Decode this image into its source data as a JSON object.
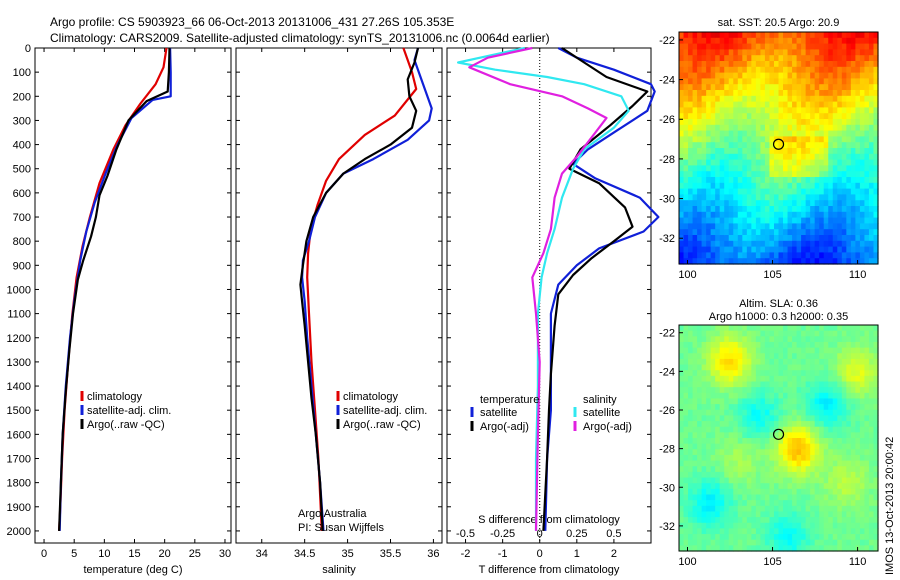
{
  "header": {
    "line1": "Argo profile: CS 5903923_66 06-Oct-2013 20131006_431 27.26S 105.353E",
    "line2": "Climatology: CARS2009. Satellite-adjusted climatology: synTS_20131006.nc (0.0064d earlier)"
  },
  "colors": {
    "climatology": "#e00000",
    "satellite": "#1020d8",
    "argo": "#000000",
    "sal_sat": "#30e8f0",
    "sal_argo": "#e020e0"
  },
  "chart_data": [
    {
      "id": "temperature",
      "type": "line",
      "xlabel": "temperature (deg C)",
      "ylabel": "",
      "xlim": [
        -1.5,
        31
      ],
      "ylim": [
        2050,
        0
      ],
      "xticks": [
        0,
        5,
        10,
        15,
        20,
        25,
        30
      ],
      "yticks": [
        0,
        100,
        200,
        300,
        400,
        500,
        600,
        700,
        800,
        900,
        1000,
        1100,
        1200,
        1300,
        1400,
        1500,
        1600,
        1700,
        1800,
        1900,
        2000
      ],
      "legend": [
        "climatology",
        "satellite-adj. clim.",
        "Argo(..raw -QC)"
      ],
      "series": [
        {
          "name": "climatology",
          "color": "#e00000",
          "points": [
            [
              20.3,
              0
            ],
            [
              19.8,
              80
            ],
            [
              18.5,
              150
            ],
            [
              16,
              230
            ],
            [
              13.5,
              320
            ],
            [
              11.5,
              420
            ],
            [
              9.2,
              560
            ],
            [
              7.6,
              700
            ],
            [
              6.4,
              820
            ],
            [
              5.4,
              950
            ],
            [
              4.7,
              1100
            ],
            [
              4.0,
              1300
            ],
            [
              3.4,
              1500
            ],
            [
              3.0,
              1700
            ],
            [
              2.7,
              1900
            ],
            [
              2.5,
              2000
            ]
          ]
        },
        {
          "name": "satellite-adj. clim.",
          "color": "#1020d8",
          "points": [
            [
              20.9,
              0
            ],
            [
              21,
              100
            ],
            [
              21,
              200
            ],
            [
              18,
              215
            ],
            [
              14.5,
              290
            ],
            [
              12.2,
              400
            ],
            [
              10.2,
              520
            ],
            [
              8.4,
              640
            ],
            [
              7,
              760
            ],
            [
              6,
              880
            ],
            [
              5,
              1050
            ],
            [
              4.3,
              1200
            ],
            [
              3.6,
              1400
            ],
            [
              3.1,
              1600
            ],
            [
              2.8,
              1800
            ],
            [
              2.6,
              2000
            ]
          ]
        },
        {
          "name": "Argo(..raw -QC)",
          "color": "#000000",
          "points": [
            [
              20.8,
              0
            ],
            [
              20.7,
              100
            ],
            [
              20.5,
              180
            ],
            [
              17,
              220
            ],
            [
              14,
              300
            ],
            [
              12,
              420
            ],
            [
              10.5,
              530
            ],
            [
              9.2,
              610
            ],
            [
              8.6,
              700
            ],
            [
              7.8,
              780
            ],
            [
              6.5,
              880
            ],
            [
              5.6,
              960
            ],
            [
              4.8,
              1100
            ],
            [
              4.2,
              1250
            ],
            [
              3.6,
              1420
            ],
            [
              3.1,
              1600
            ],
            [
              2.8,
              1800
            ],
            [
              2.5,
              2000
            ]
          ]
        }
      ]
    },
    {
      "id": "salinity",
      "type": "line",
      "xlabel": "salinity",
      "ylabel": "",
      "xlim": [
        33.7,
        36.1
      ],
      "ylim": [
        2050,
        0
      ],
      "xticks": [
        34,
        34.5,
        35,
        35.5,
        36
      ],
      "legend": [
        "climatology",
        "satellite-adj. clim.",
        "Argo(..raw -QC)"
      ],
      "annotation": [
        "Argo Australia",
        "PI: Susan Wijffels"
      ],
      "series": [
        {
          "name": "climatology",
          "color": "#e00000",
          "points": [
            [
              35.65,
              0
            ],
            [
              35.75,
              100
            ],
            [
              35.8,
              170
            ],
            [
              35.55,
              280
            ],
            [
              35.2,
              360
            ],
            [
              34.9,
              460
            ],
            [
              34.75,
              550
            ],
            [
              34.65,
              650
            ],
            [
              34.57,
              750
            ],
            [
              34.54,
              850
            ],
            [
              34.53,
              950
            ],
            [
              34.55,
              1100
            ],
            [
              34.58,
              1300
            ],
            [
              34.62,
              1500
            ],
            [
              34.66,
              1700
            ],
            [
              34.7,
              2000
            ]
          ]
        },
        {
          "name": "satellite-adj. clim.",
          "color": "#1020d8",
          "points": [
            [
              35.82,
              0
            ],
            [
              35.78,
              50
            ],
            [
              35.88,
              150
            ],
            [
              35.98,
              250
            ],
            [
              35.95,
              300
            ],
            [
              35.7,
              380
            ],
            [
              35.3,
              460
            ],
            [
              34.95,
              520
            ],
            [
              34.75,
              600
            ],
            [
              34.62,
              700
            ],
            [
              34.55,
              800
            ],
            [
              34.48,
              880
            ],
            [
              34.47,
              950
            ],
            [
              34.5,
              1050
            ],
            [
              34.53,
              1200
            ],
            [
              34.58,
              1400
            ],
            [
              34.63,
              1600
            ],
            [
              34.68,
              1800
            ],
            [
              34.72,
              2000
            ]
          ]
        },
        {
          "name": "Argo(..raw -QC)",
          "color": "#000000",
          "points": [
            [
              35.82,
              0
            ],
            [
              35.78,
              60
            ],
            [
              35.7,
              130
            ],
            [
              35.72,
              200
            ],
            [
              35.8,
              260
            ],
            [
              35.75,
              330
            ],
            [
              35.5,
              400
            ],
            [
              35.2,
              460
            ],
            [
              34.95,
              520
            ],
            [
              34.75,
              600
            ],
            [
              34.6,
              700
            ],
            [
              34.52,
              800
            ],
            [
              34.48,
              900
            ],
            [
              34.45,
              980
            ],
            [
              34.47,
              1050
            ],
            [
              34.5,
              1150
            ],
            [
              34.54,
              1300
            ],
            [
              34.58,
              1450
            ],
            [
              34.63,
              1600
            ],
            [
              34.68,
              1800
            ],
            [
              34.71,
              2000
            ]
          ]
        }
      ]
    },
    {
      "id": "differences",
      "type": "line",
      "xlabel": "T difference from climatology",
      "xlabel2": "S difference from climatology",
      "xlim": [
        -2.5,
        3
      ],
      "ylim": [
        2050,
        0
      ],
      "xticks": [
        -2,
        -1,
        0,
        1,
        2
      ],
      "xticks2": [
        -0.5,
        -0.25,
        0,
        0.25,
        0.5
      ],
      "x2lim": [
        -0.625,
        0.75
      ],
      "legend_titles": [
        "temperature",
        "salinity"
      ],
      "legend": [
        "satellite",
        "Argo(-adj)",
        "satellite",
        "Argo(-adj)"
      ],
      "series": [
        {
          "name": "satellite",
          "group": "temperature",
          "color": "#1020d8",
          "points": [
            [
              0.5,
              0
            ],
            [
              1.0,
              40
            ],
            [
              2.0,
              90
            ],
            [
              3.0,
              150
            ],
            [
              3.1,
              180
            ],
            [
              2.9,
              260
            ],
            [
              2.1,
              340
            ],
            [
              1.3,
              420
            ],
            [
              0.9,
              480
            ],
            [
              1.5,
              540
            ],
            [
              2.7,
              620
            ],
            [
              3.2,
              700
            ],
            [
              2.8,
              760
            ],
            [
              1.6,
              830
            ],
            [
              1.0,
              900
            ],
            [
              0.5,
              980
            ],
            [
              0.3,
              1100
            ],
            [
              0.3,
              1300
            ],
            [
              0.3,
              1500
            ],
            [
              0.2,
              1700
            ],
            [
              0.15,
              2000
            ]
          ]
        },
        {
          "name": "Argo(-adj)",
          "group": "temperature",
          "color": "#000000",
          "points": [
            [
              0.6,
              0
            ],
            [
              1.2,
              60
            ],
            [
              1.8,
              120
            ],
            [
              2.9,
              180
            ],
            [
              2.5,
              240
            ],
            [
              1.9,
              320
            ],
            [
              1.1,
              420
            ],
            [
              0.8,
              500
            ],
            [
              1.6,
              560
            ],
            [
              2.3,
              660
            ],
            [
              2.5,
              740
            ],
            [
              2.0,
              800
            ],
            [
              1.4,
              870
            ],
            [
              0.9,
              940
            ],
            [
              0.5,
              1020
            ],
            [
              0.4,
              1150
            ],
            [
              0.3,
              1350
            ],
            [
              0.25,
              1500
            ],
            [
              0.2,
              1700
            ],
            [
              0.1,
              2000
            ]
          ]
        },
        {
          "name": "satellite",
          "group": "salinity",
          "color": "#30e8f0",
          "points": [
            [
              -0.4,
              0
            ],
            [
              -1.3,
              30
            ],
            [
              -2.2,
              60
            ],
            [
              -1.2,
              90
            ],
            [
              0.2,
              120
            ],
            [
              1.2,
              150
            ],
            [
              2.2,
              200
            ],
            [
              2.4,
              260
            ],
            [
              2.0,
              330
            ],
            [
              1.2,
              420
            ],
            [
              0.9,
              500
            ],
            [
              0.6,
              620
            ],
            [
              0.4,
              750
            ],
            [
              0.2,
              850
            ],
            [
              0.05,
              950
            ],
            [
              -0.05,
              1100
            ],
            [
              -0.05,
              1400
            ],
            [
              -0.1,
              1700
            ],
            [
              -0.1,
              2000
            ]
          ]
        },
        {
          "name": "Argo(-adj)",
          "group": "salinity",
          "color": "#e020e0",
          "points": [
            [
              -0.2,
              0
            ],
            [
              -1.4,
              40
            ],
            [
              -1.9,
              80
            ],
            [
              -0.8,
              150
            ],
            [
              0.6,
              200
            ],
            [
              1.3,
              250
            ],
            [
              1.8,
              290
            ],
            [
              1.5,
              350
            ],
            [
              1.0,
              450
            ],
            [
              0.6,
              520
            ],
            [
              0.4,
              620
            ],
            [
              0.3,
              750
            ],
            [
              0.1,
              850
            ],
            [
              -0.2,
              950
            ],
            [
              -0.1,
              1100
            ],
            [
              0.0,
              1300
            ],
            [
              -0.05,
              1600
            ],
            [
              -0.1,
              2000
            ]
          ]
        }
      ]
    },
    {
      "id": "sst_map",
      "type": "heatmap",
      "title": "sat. SST: 20.5  Argo: 20.9",
      "xlim": [
        99.5,
        111.2
      ],
      "ylim": [
        -33.3,
        -21.6
      ],
      "xticks": [
        100,
        105,
        110
      ],
      "yticks": [
        -22,
        -24,
        -26,
        -28,
        -30,
        -32
      ],
      "marker": [
        105.353,
        -27.26
      ]
    },
    {
      "id": "sla_map",
      "type": "heatmap",
      "title": "Altim. SLA: 0.36",
      "subtitle": "Argo h1000: 0.3 h2000: 0.35",
      "xlim": [
        99.5,
        111.2
      ],
      "ylim": [
        -33.3,
        -21.6
      ],
      "xticks": [
        100,
        105,
        110
      ],
      "yticks": [
        -22,
        -24,
        -26,
        -28,
        -30,
        -32
      ],
      "marker": [
        105.353,
        -27.26
      ]
    }
  ],
  "credit": "IMOS 13-Oct-2013 20:00:42"
}
